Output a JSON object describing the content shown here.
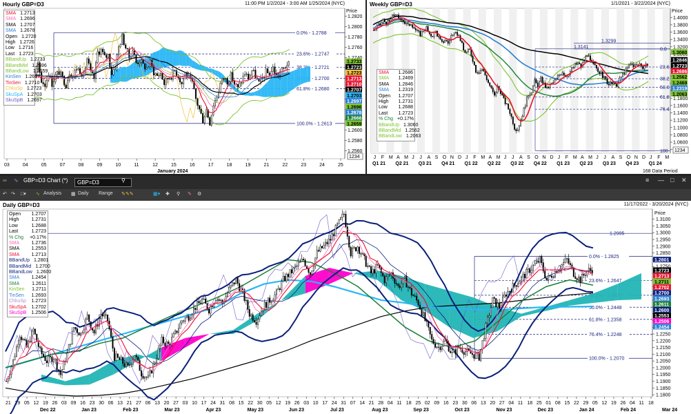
{
  "hourly": {
    "title": "Hourly GBP=D3",
    "range": "11:00 PM 1/2/2024 - 3:00 AM 1/25/2024 (NYC)",
    "price_label": "Price",
    "month_label": "January 2024",
    "x_ticks": [
      "03",
      "04",
      "05",
      "07",
      "08",
      "09",
      "10",
      "11",
      "12",
      "15",
      "16",
      "17",
      "18",
      "19",
      "21",
      "22",
      "23",
      "24",
      "25"
    ],
    "y_ticks": [
      "1.2820",
      "1.2800",
      "1.2780",
      "1.2760",
      "1.2740",
      "1.2720",
      "1.2700",
      "1.2680",
      "1.2660",
      "1.2640",
      "1.2620",
      "1.2600",
      "1.2580",
      "1.2560"
    ],
    "ylim": [
      1.2545,
      1.2835
    ],
    "corner_label": "1234",
    "legend": [
      {
        "label": "SMA",
        "value": "1.2713",
        "color": "#e8112d"
      },
      {
        "label": "SMA",
        "value": "1.2696",
        "color": "#ff69b4"
      },
      {
        "label": "SMA",
        "value": "1.2707",
        "color": "#000000"
      },
      {
        "label": "SMA",
        "value": "1.2678",
        "color": "#2a7fd4"
      },
      {
        "label": "Open",
        "value": "1.2720",
        "color": "#000000"
      },
      {
        "label": "High",
        "value": "1.2726",
        "color": "#000000"
      },
      {
        "label": "Low",
        "value": "1.2716",
        "color": "#000000"
      },
      {
        "label": "Last",
        "value": "1.2723",
        "color": "#000000"
      },
      {
        "label": "BBandUp",
        "value": "1.2733",
        "color": "#7cc22d"
      },
      {
        "label": "BBandMid",
        "value": "1.2696",
        "color": "#7cc22d"
      },
      {
        "label": "BBandLow",
        "value": "1.2659",
        "color": "#7cc22d"
      },
      {
        "label": "KinSen",
        "value": "1.2697",
        "color": "#2a7fd4"
      },
      {
        "label": "TinSen",
        "value": "1.2710",
        "color": "#e8112d"
      },
      {
        "label": "ChkuSp",
        "value": "1.2723",
        "color": "#f0c040"
      },
      {
        "label": "SkuSpA",
        "value": "1.2703",
        "color": "#29b6f6"
      },
      {
        "label": "SkuSpB",
        "value": "1.2697",
        "color": "#6a5acd"
      }
    ],
    "fib": [
      {
        "label": "0.0% - 1.2788",
        "value": 1.2788
      },
      {
        "label": "23.6% - 1.2747",
        "value": 1.2747
      },
      {
        "label": "38.2% - 1.2721",
        "value": 1.2721
      },
      {
        "label": "50.0% - 1.2700",
        "value": 1.27
      },
      {
        "label": "61.8% - 1.2680",
        "value": 1.268
      },
      {
        "label": "100.0% - 1.2613",
        "value": 1.2613
      }
    ],
    "axis_tags": [
      {
        "value": "1.2733",
        "color": "#7cc22d"
      },
      {
        "value": "1.2723",
        "color": "#000000"
      },
      {
        "value": "1.2723",
        "color": "#f0c040"
      },
      {
        "value": "1.2713",
        "color": "#e8112d"
      },
      {
        "value": "1.2710",
        "color": "#e8112d"
      },
      {
        "value": "1.2707",
        "color": "#000000"
      },
      {
        "value": "1.2703",
        "color": "#29b6f6"
      },
      {
        "value": "1.2697",
        "color": "#2a7fd4"
      },
      {
        "value": "1.2696",
        "color": "#7cc22d"
      },
      {
        "value": "1.2678",
        "color": "#2a7fd4"
      },
      {
        "value": "1.2666",
        "color": "#1a7f37"
      },
      {
        "value": "1.2659",
        "color": "#7cc22d"
      }
    ],
    "close_path": [
      1.271,
      1.2705,
      1.273,
      1.269,
      1.27,
      1.272,
      1.27,
      1.268,
      1.2705,
      1.2725,
      1.2695,
      1.2688,
      1.271,
      1.269,
      1.2705,
      1.2712,
      1.27,
      1.2688,
      1.2712,
      1.2705,
      1.272,
      1.2715,
      1.2705,
      1.2738,
      1.271,
      1.27,
      1.275,
      1.2755,
      1.274,
      1.2745,
      1.271,
      1.2725,
      1.276,
      1.278,
      1.276,
      1.274,
      1.2755,
      1.273,
      1.2735,
      1.2725,
      1.272,
      1.273,
      1.2712,
      1.2705,
      1.271,
      1.269,
      1.27,
      1.2705,
      1.2715,
      1.2705,
      1.269,
      1.271,
      1.27,
      1.269,
      1.266,
      1.264,
      1.262,
      1.264,
      1.2615,
      1.265,
      1.2665,
      1.269,
      1.27,
      1.2695,
      1.2705,
      1.269,
      1.268,
      1.2695,
      1.271,
      1.27,
      1.2715,
      1.2705,
      1.269,
      1.27,
      1.2712,
      1.2708,
      1.272,
      1.2705,
      1.2712,
      1.2718,
      1.2728,
      1.2723
    ]
  },
  "weekly": {
    "title": "Weekly GBP=D3",
    "range": "1/1/2021 - 3/22/2024 (NYC)",
    "price_label": "Price",
    "month_ticks": [
      "J",
      "F",
      "M",
      "A",
      "M",
      "J",
      "J",
      "A",
      "S",
      "O",
      "N",
      "D",
      "J",
      "F",
      "M",
      "A",
      "M",
      "J",
      "J",
      "A",
      "S",
      "O",
      "N",
      "D",
      "J",
      "F",
      "M",
      "A",
      "M",
      "J",
      "J",
      "A",
      "S",
      "O",
      "N",
      "D",
      "J",
      "F",
      "M"
    ],
    "quarter_ticks": [
      "Q1 21",
      "Q2 21",
      "Q3 21",
      "Q4 21",
      "Q1 22",
      "Q2 22",
      "Q3 22",
      "Q4 22",
      "Q1 23",
      "Q2 23",
      "Q3 23",
      "Q4 23",
      "Q1 24"
    ],
    "y_ticks": [
      "1.4000",
      "1.3800",
      "1.3600",
      "1.3400",
      "1.3200",
      "1.3000",
      "1.2800",
      "1.2600",
      "1.2400",
      "1.2200",
      "1.2000",
      "1.1800",
      "1.1600",
      "1.1400",
      "1.1200",
      "1.1000",
      "1.0800",
      "1.0600",
      "1.0400"
    ],
    "ylim": [
      1.03,
      1.425
    ],
    "corner_label": "1234",
    "footer": "168 Data Period",
    "fib_levels": [
      {
        "label": "0.0",
        "value": 1.3143
      },
      {
        "label": "23.6",
        "value": 1.265
      },
      {
        "label": "38.2",
        "value": 1.233
      },
      {
        "label": "50.0",
        "value": 1.21
      },
      {
        "label": "61.8",
        "value": 1.183
      },
      {
        "label": "76.4",
        "value": 1.15
      },
      {
        "label": "100",
        "value": 1.037
      }
    ],
    "annotations": [
      {
        "label": "1.3299",
        "value": 1.3299
      },
      {
        "label": "1.3141",
        "value": 1.3141
      }
    ],
    "legend": [
      {
        "label": "SMA",
        "value": "1.2686",
        "color": "#e8112d"
      },
      {
        "label": "SMA",
        "value": "1.2469",
        "color": "#7cc22d"
      },
      {
        "label": "SMA",
        "value": "1.2846",
        "color": "#000000"
      },
      {
        "label": "SMA",
        "value": "1.2319",
        "color": "#2a7fd4"
      },
      {
        "label": "Open",
        "value": "1.2707",
        "color": "#000000"
      },
      {
        "label": "High",
        "value": "1.2731",
        "color": "#000000"
      },
      {
        "label": "Low",
        "value": "1.2688",
        "color": "#000000"
      },
      {
        "label": "Last",
        "value": "1.2723",
        "color": "#000000"
      },
      {
        "label": "% Chg",
        "value": "+0.17%",
        "color": "#1a7f37"
      },
      {
        "label": "BBandUp",
        "value": "1.3060",
        "color": "#7cc22d"
      },
      {
        "label": "BBandMid",
        "value": "1.2562",
        "color": "#7cc22d"
      },
      {
        "label": "BBandLow",
        "value": "1.2063",
        "color": "#7cc22d"
      }
    ],
    "axis_tags": [
      {
        "value": "1.3060",
        "color": "#7cc22d"
      },
      {
        "value": "1.2846",
        "color": "#000000"
      },
      {
        "value": "1.2723",
        "color": "#000000"
      },
      {
        "value": "1.2686",
        "color": "#e8112d"
      },
      {
        "value": "1.2562",
        "color": "#7cc22d"
      },
      {
        "value": "1.2469",
        "color": "#7cc22d"
      },
      {
        "value": "1.2319",
        "color": "#2a7fd4"
      },
      {
        "value": "1.2063",
        "color": "#7cc22d"
      }
    ],
    "close_path": [
      1.365,
      1.375,
      1.38,
      1.392,
      1.385,
      1.388,
      1.402,
      1.41,
      1.395,
      1.398,
      1.385,
      1.378,
      1.385,
      1.372,
      1.36,
      1.355,
      1.366,
      1.372,
      1.35,
      1.352,
      1.362,
      1.344,
      1.33,
      1.34,
      1.33,
      1.35,
      1.352,
      1.356,
      1.34,
      1.31,
      1.305,
      1.312,
      1.285,
      1.255,
      1.252,
      1.26,
      1.243,
      1.223,
      1.205,
      1.185,
      1.21,
      1.198,
      1.175,
      1.16,
      1.142,
      1.115,
      1.085,
      1.108,
      1.135,
      1.164,
      1.19,
      1.2,
      1.225,
      1.215,
      1.232,
      1.218,
      1.205,
      1.215,
      1.222,
      1.232,
      1.245,
      1.252,
      1.24,
      1.248,
      1.258,
      1.27,
      1.275,
      1.265,
      1.283,
      1.3,
      1.28,
      1.27,
      1.262,
      1.252,
      1.24,
      1.23,
      1.217,
      1.22,
      1.213,
      1.222,
      1.238,
      1.25,
      1.262,
      1.272,
      1.27,
      1.268,
      1.273,
      1.265,
      1.272,
      1.2723
    ]
  },
  "toolbar": {
    "chart_name": "GBP=D3 Chart (*)",
    "instrument_input": "GBP=D3",
    "analysis": "Analysis",
    "interval": "Daily",
    "range": "Range"
  },
  "daily": {
    "title": "Daily GBP=D3",
    "range": "11/17/2022 - 3/20/2024 (NYC)",
    "price_label": "Price",
    "x_day_ticks": [
      "21",
      "29",
      "05",
      "12",
      "19",
      "26",
      "03",
      "09",
      "16",
      "23",
      "30",
      "06",
      "13",
      "21",
      "27",
      "06",
      "13",
      "20",
      "27",
      "03",
      "10",
      "17",
      "24",
      "31",
      "08",
      "15",
      "22",
      "30",
      "05",
      "12",
      "19",
      "26",
      "03",
      "10",
      "17",
      "24",
      "31",
      "07",
      "14",
      "21",
      "28",
      "04",
      "11",
      "18",
      "25",
      "02",
      "09",
      "16",
      "23",
      "30",
      "06",
      "13",
      "20",
      "27",
      "04",
      "11",
      "18",
      "25",
      "01",
      "08",
      "15",
      "22",
      "29",
      "05",
      "12",
      "19",
      "26",
      "04",
      "11",
      "18"
    ],
    "month_labels": [
      "Dec 22",
      "Jan 23",
      "Feb 23",
      "Mar 23",
      "Apr 23",
      "May 23",
      "Jun 23",
      "Jul 23",
      "Aug 23",
      "Sep 23",
      "Oct 23",
      "Nov 23",
      "Dec 23",
      "Jan 24",
      "Feb 24",
      "Mar 24"
    ],
    "y_ticks": [
      "1.3100",
      "1.3050",
      "1.3000",
      "1.2950",
      "1.2900",
      "1.2850",
      "1.2800",
      "1.2750",
      "1.2700",
      "1.2650",
      "1.2600",
      "1.2550",
      "1.2500",
      "1.2450",
      "1.2400",
      "1.2350",
      "1.2300",
      "1.2250",
      "1.2200",
      "1.2150",
      "1.2100",
      "1.2050",
      "1.2000",
      "1.1950",
      "1.1900",
      "1.1850",
      "1.1800"
    ],
    "ylim": [
      1.1785,
      1.3175
    ],
    "annotations": [
      {
        "label": "1.2995",
        "value": 1.2995
      }
    ],
    "fib": [
      {
        "label": "0.0% - 1.2825",
        "value": 1.2825
      },
      {
        "label": "23.6% - 1.2647",
        "value": 1.2647
      },
      {
        "label": "38.2% - 1.2537",
        "value": 1.2537
      },
      {
        "label": "50.0% - 1.2448",
        "value": 1.2448
      },
      {
        "label": "61.8% - 1.2358",
        "value": 1.2358
      },
      {
        "label": "76.4% - 1.2248",
        "value": 1.2248
      },
      {
        "label": "100.0% - 1.2070",
        "value": 1.207
      }
    ],
    "legend": [
      {
        "label": "Open",
        "value": "1.2707",
        "color": "#000000"
      },
      {
        "label": "High",
        "value": "1.2731",
        "color": "#000000"
      },
      {
        "label": "Low",
        "value": "1.2688",
        "color": "#000000"
      },
      {
        "label": "Last",
        "value": "1.2723",
        "color": "#000000"
      },
      {
        "label": "% Chg",
        "value": "+0.17%",
        "color": "#1a7f37"
      },
      {
        "label": "SMA",
        "value": "1.2736",
        "color": "#ff69b4"
      },
      {
        "label": "SMA",
        "value": "1.2553",
        "color": "#000000"
      },
      {
        "label": "SMA",
        "value": "1.2713",
        "color": "#e8112d"
      },
      {
        "label": "BBandUp",
        "value": "1.2801",
        "color": "#0a1f7a"
      },
      {
        "label": "BBandMid",
        "value": "1.2700",
        "color": "#0a1f7a"
      },
      {
        "label": "BBandLow",
        "value": "1.2600",
        "color": "#0a1f7a"
      },
      {
        "label": "SMA",
        "value": "1.2454",
        "color": "#2a7fd4"
      },
      {
        "label": "SMA",
        "value": "1.2611",
        "color": "#1a7f37"
      },
      {
        "label": "KinSen",
        "value": "1.2711",
        "color": "#7cc22d"
      },
      {
        "label": "TinSen",
        "value": "1.2693",
        "color": "#2a7fd4"
      },
      {
        "label": "ChkuSp",
        "value": "1.2723",
        "color": "#b28cd6"
      },
      {
        "label": "SkuSpA",
        "value": "1.2702",
        "color": "#e8112d"
      },
      {
        "label": "SkuSpB",
        "value": "1.2506",
        "color": "#ff00cc"
      }
    ],
    "axis_tags": [
      {
        "value": "1.2801",
        "color": "#0a1f7a"
      },
      {
        "value": "1.2723",
        "color": "#000000"
      },
      {
        "value": "1.2713",
        "color": "#e8112d"
      },
      {
        "value": "1.2711",
        "color": "#7cc22d"
      },
      {
        "value": "1.2702",
        "color": "#e8112d"
      },
      {
        "value": "1.2700",
        "color": "#0a1f7a"
      },
      {
        "value": "1.2693",
        "color": "#2a7fd4"
      },
      {
        "value": "1.2611",
        "color": "#1a7f37"
      },
      {
        "value": "1.2600",
        "color": "#0a1f7a"
      },
      {
        "value": "1.2553",
        "color": "#000000"
      },
      {
        "value": "1.2506",
        "color": "#ff00cc"
      },
      {
        "value": "1.2454",
        "color": "#2a7fd4"
      }
    ],
    "close_path": [
      1.19,
      1.205,
      1.225,
      1.215,
      1.228,
      1.212,
      1.205,
      1.208,
      1.195,
      1.21,
      1.23,
      1.225,
      1.238,
      1.226,
      1.24,
      1.235,
      1.208,
      1.205,
      1.2,
      1.21,
      1.196,
      1.192,
      1.205,
      1.22,
      1.217,
      1.225,
      1.235,
      1.238,
      1.245,
      1.25,
      1.243,
      1.252,
      1.248,
      1.258,
      1.265,
      1.255,
      1.24,
      1.235,
      1.245,
      1.25,
      1.255,
      1.265,
      1.27,
      1.275,
      1.28,
      1.27,
      1.285,
      1.29,
      1.295,
      1.305,
      1.314,
      1.285,
      1.29,
      1.28,
      1.27,
      1.275,
      1.265,
      1.27,
      1.26,
      1.265,
      1.255,
      1.248,
      1.235,
      1.22,
      1.215,
      1.22,
      1.21,
      1.215,
      1.212,
      1.21,
      1.208,
      1.23,
      1.25,
      1.245,
      1.255,
      1.26,
      1.265,
      1.27,
      1.275,
      1.28,
      1.265,
      1.27,
      1.275,
      1.28,
      1.27,
      1.265,
      1.272,
      1.2723
    ],
    "kumo_a": [
      1.195,
      1.19,
      1.195,
      1.205,
      1.21,
      1.205,
      1.215,
      1.225,
      1.228,
      1.24,
      1.25,
      1.255,
      1.262,
      1.27,
      1.272,
      1.268,
      1.262,
      1.257,
      1.252,
      1.245,
      1.24,
      1.245,
      1.25,
      1.255,
      1.262,
      1.27
    ],
    "kumo_b": [
      1.19,
      1.187,
      1.1875,
      1.195,
      1.205,
      1.215,
      1.222,
      1.225,
      1.225,
      1.235,
      1.25,
      1.268,
      1.274,
      1.27,
      1.265,
      1.25,
      1.242,
      1.23,
      1.222,
      1.227,
      1.238,
      1.242,
      1.246,
      1.248,
      1.25,
      1.2506
    ],
    "sma200": [
      1.185,
      1.182,
      1.18,
      1.179,
      1.1795,
      1.181,
      1.184,
      1.188,
      1.192,
      1.197,
      1.202,
      1.207,
      1.213,
      1.22,
      1.226,
      1.232,
      1.238,
      1.242,
      1.245,
      1.246,
      1.247,
      1.248,
      1.25,
      1.252,
      1.254,
      1.2553
    ],
    "sma100": [
      1.2,
      1.205,
      1.21,
      1.215,
      1.22,
      1.225,
      1.23,
      1.235,
      1.24,
      1.245,
      1.255,
      1.262,
      1.265,
      1.264,
      1.26,
      1.255,
      1.25,
      1.248,
      1.245,
      1.244,
      1.243,
      1.243,
      1.244,
      1.245,
      1.2452,
      1.2454
    ],
    "sma50": [
      1.2,
      1.205,
      1.21,
      1.212,
      1.218,
      1.222,
      1.23,
      1.238,
      1.245,
      1.252,
      1.26,
      1.27,
      1.28,
      1.278,
      1.27,
      1.26,
      1.245,
      1.23,
      1.22,
      1.215,
      1.22,
      1.235,
      1.25,
      1.26,
      1.265,
      1.2611
    ]
  }
}
